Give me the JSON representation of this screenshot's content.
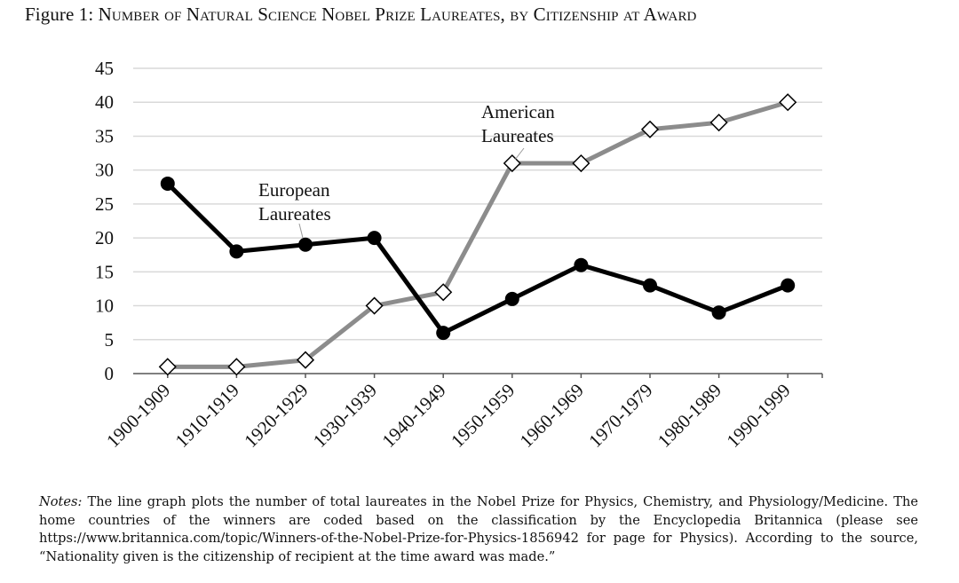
{
  "figure": {
    "prefix": "Figure 1: ",
    "title": "Number of Natural Science Nobel Prize Laureates, by Citizenship at Award"
  },
  "notes": {
    "label": "Notes:",
    "text": "The line graph plots the number of total laureates in the Nobel Prize for Physics, Chemistry, and Physiology/Medicine. The home countries of the winners are coded based on the classification by the Encyclopedia Britannica (please see https://www.britannica.com/topic/Winners-of-the-Nobel-Prize-for-Physics-1856942 for page for Physics). According to the source, “Nationality given is the citizenship of recipient at the time award was made.”"
  },
  "chart_data": {
    "type": "line",
    "title": "Figure 1: Number of Natural Science Nobel Prize Laureates, by Citizenship at Award",
    "xlabel": "",
    "ylabel": "",
    "categories": [
      "1900-1909",
      "1910-1919",
      "1920-1929",
      "1930-1939",
      "1940-1949",
      "1950-1959",
      "1960-1969",
      "1970-1979",
      "1980-1989",
      "1990-1999"
    ],
    "ylim": [
      0,
      45
    ],
    "yticks": [
      "0",
      "5",
      "10",
      "15",
      "20",
      "25",
      "30",
      "35",
      "40",
      "45"
    ],
    "grid": true,
    "series": [
      {
        "name": "European Laureates",
        "label_lines": [
          "European",
          "Laureates"
        ],
        "color": "#000000",
        "marker": "circle",
        "values": [
          28,
          18,
          19,
          20,
          6,
          11,
          16,
          13,
          9,
          13
        ]
      },
      {
        "name": "American Laureates",
        "label_lines": [
          "American",
          "Laureates"
        ],
        "color": "#8c8c8c",
        "marker": "diamond",
        "values": [
          1,
          1,
          2,
          10,
          12,
          31,
          31,
          36,
          37,
          40
        ]
      }
    ]
  }
}
